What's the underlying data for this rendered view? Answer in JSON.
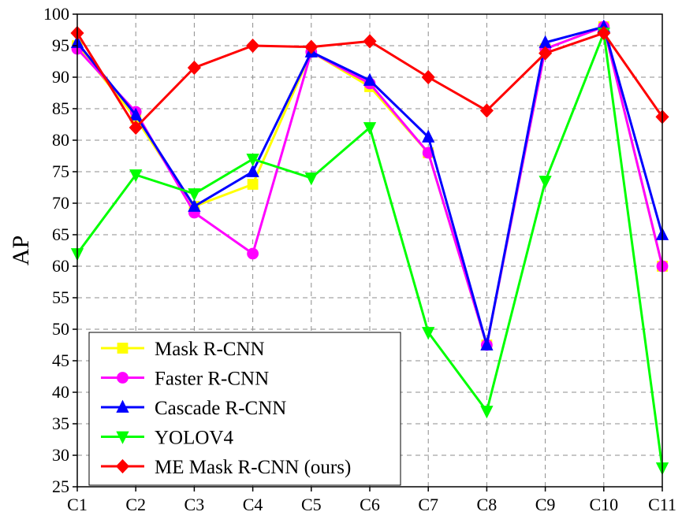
{
  "chart_data": {
    "type": "line",
    "title": "",
    "xlabel": "",
    "ylabel": "AP",
    "categories": [
      "C1",
      "C2",
      "C3",
      "C4",
      "C5",
      "C6",
      "C7",
      "C8",
      "C9",
      "C10",
      "C11"
    ],
    "ylim": [
      25,
      100
    ],
    "yticks": [
      25,
      30,
      35,
      40,
      45,
      50,
      55,
      60,
      65,
      70,
      75,
      80,
      85,
      90,
      95,
      100
    ],
    "grid": true,
    "legend_position": "bottom-left",
    "series": [
      {
        "name": "Mask R-CNN",
        "color": "#ffff00",
        "marker": "square",
        "values": [
          95.0,
          83.5,
          69.5,
          73.0,
          94.0,
          88.5,
          78.0,
          47.5,
          94.5,
          98.0,
          60.0
        ]
      },
      {
        "name": "Faster R-CNN",
        "color": "#ff00ff",
        "marker": "circle",
        "values": [
          94.5,
          84.5,
          68.5,
          62.0,
          94.0,
          89.0,
          78.0,
          47.5,
          94.5,
          98.0,
          60.0
        ]
      },
      {
        "name": "Cascade R-CNN",
        "color": "#0000ff",
        "marker": "triangle-up",
        "values": [
          95.5,
          84.0,
          69.5,
          75.0,
          94.0,
          89.5,
          80.5,
          47.5,
          95.5,
          98.0,
          65.0
        ]
      },
      {
        "name": "YOLOV4",
        "color": "#00ff00",
        "marker": "triangle-down",
        "values": [
          62.0,
          74.5,
          71.5,
          77.0,
          74.0,
          82.0,
          49.5,
          37.0,
          73.5,
          97.0,
          28.0
        ]
      },
      {
        "name": "ME Mask R-CNN (ours)",
        "color": "#ff0000",
        "marker": "diamond",
        "values": [
          97.0,
          82.0,
          91.5,
          95.0,
          94.8,
          95.7,
          90.0,
          84.7,
          93.8,
          97.0,
          83.7
        ]
      }
    ]
  }
}
